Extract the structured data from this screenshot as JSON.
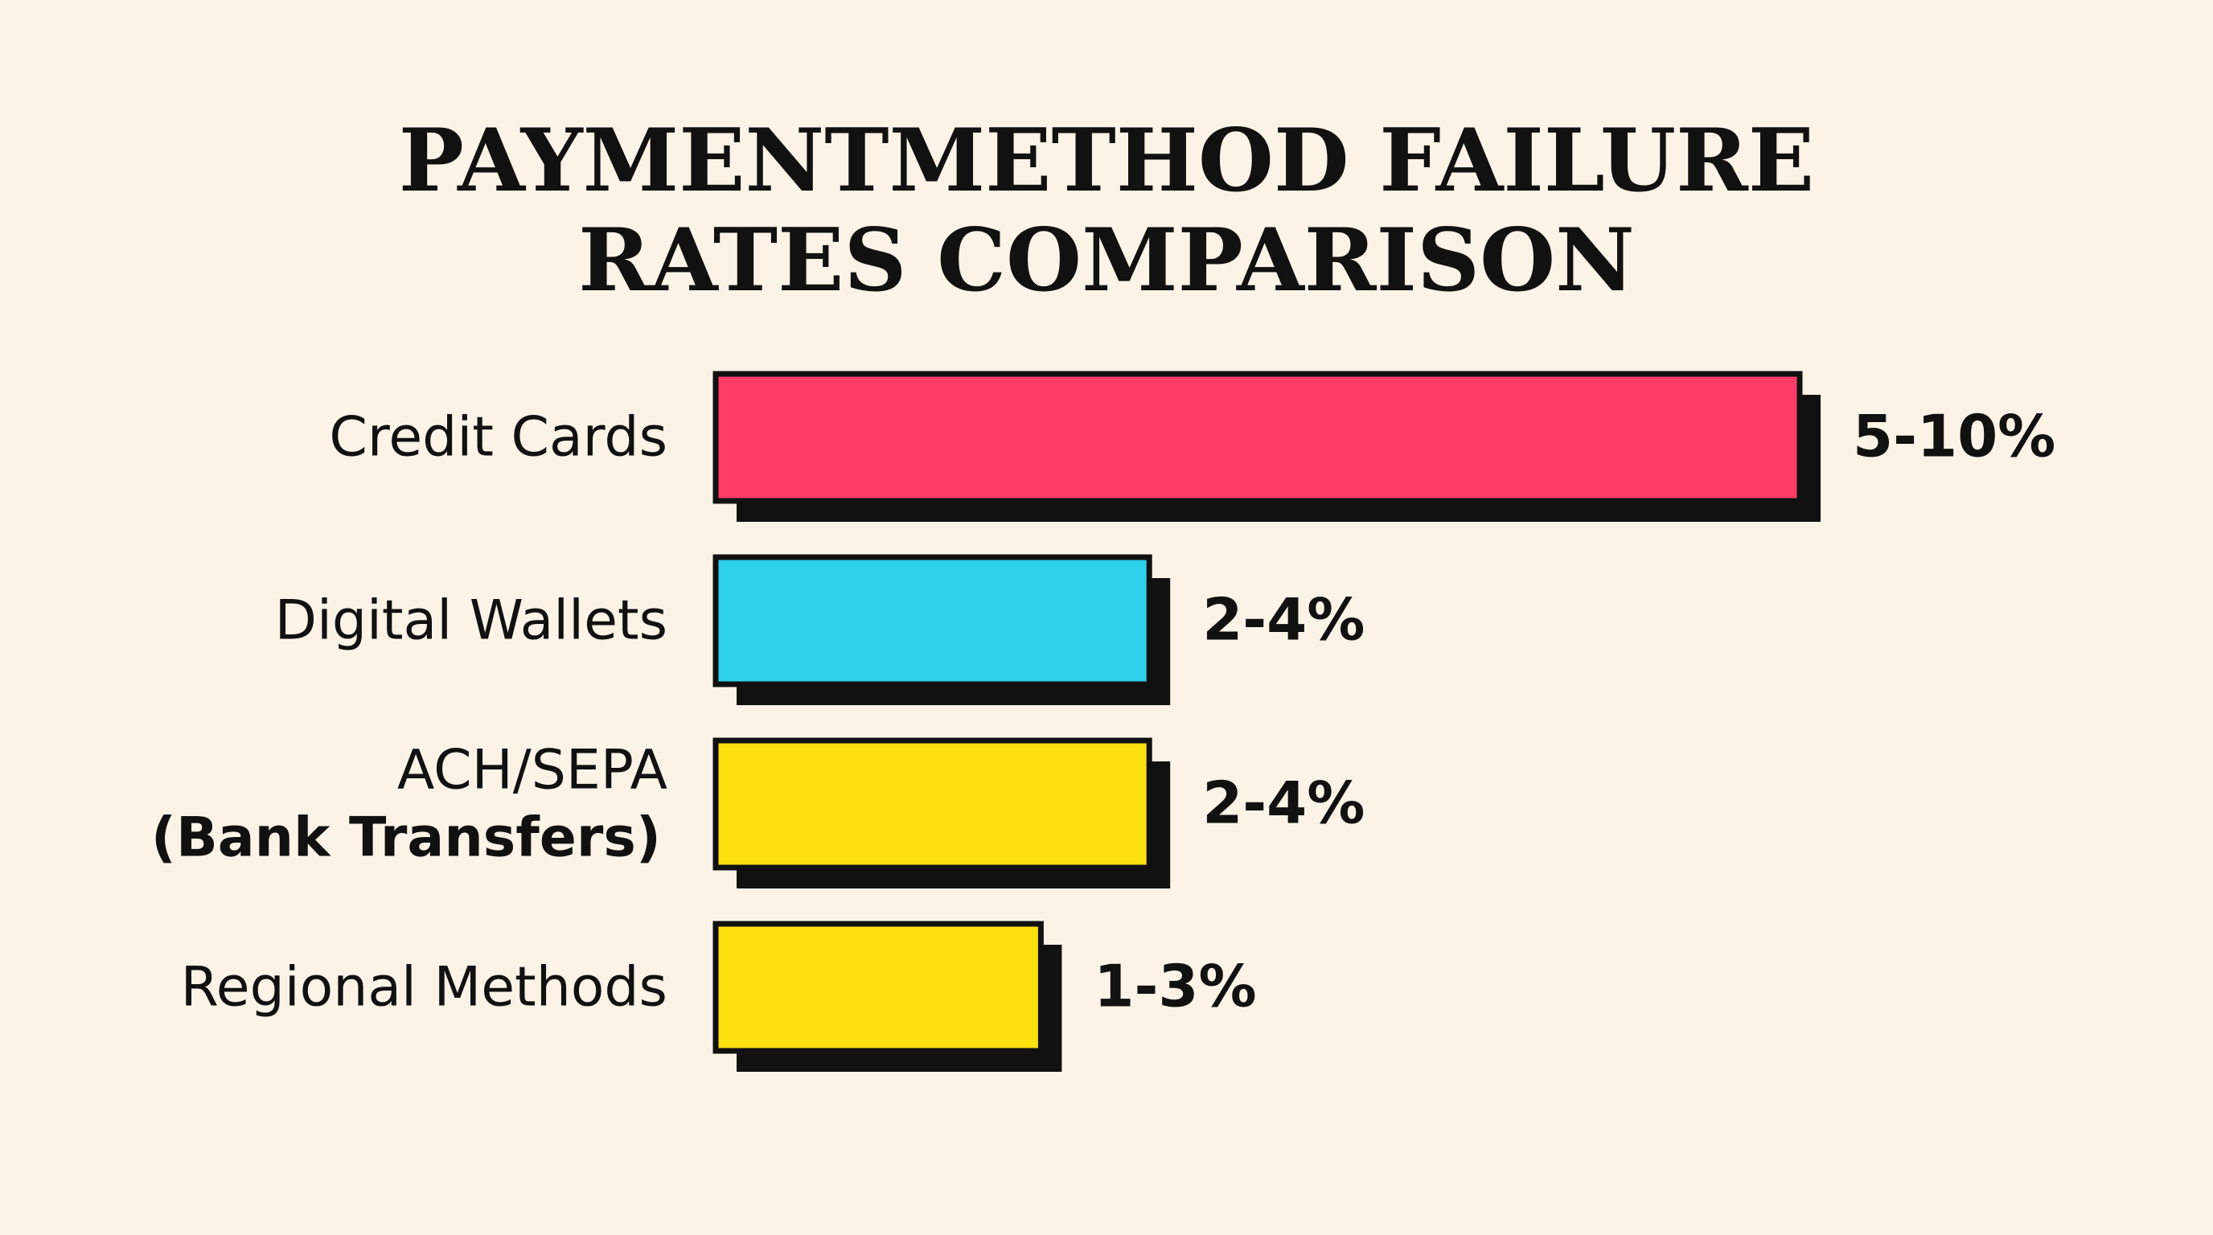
{
  "chart_data": {
    "type": "range_bar",
    "title": "PAYMENTMETHOD FAILURE\nRATES COMPARISON",
    "categories": [
      "Credit Cards",
      "Digital Wallets",
      "ACH/SEPA",
      "Regional Methods"
    ],
    "category_sublabels": [
      null,
      null,
      "(Bank Transfers)",
      null
    ],
    "values": [
      [
        5,
        10
      ],
      [
        2,
        4
      ],
      [
        2,
        4
      ],
      [
        1,
        3
      ]
    ],
    "value_labels": [
      "5-10%",
      "2-4%",
      "2-4%",
      "1-3%"
    ],
    "colors": [
      "#ff3b66",
      "#2dd0eb",
      "#fde010",
      "#fde010"
    ]
  }
}
